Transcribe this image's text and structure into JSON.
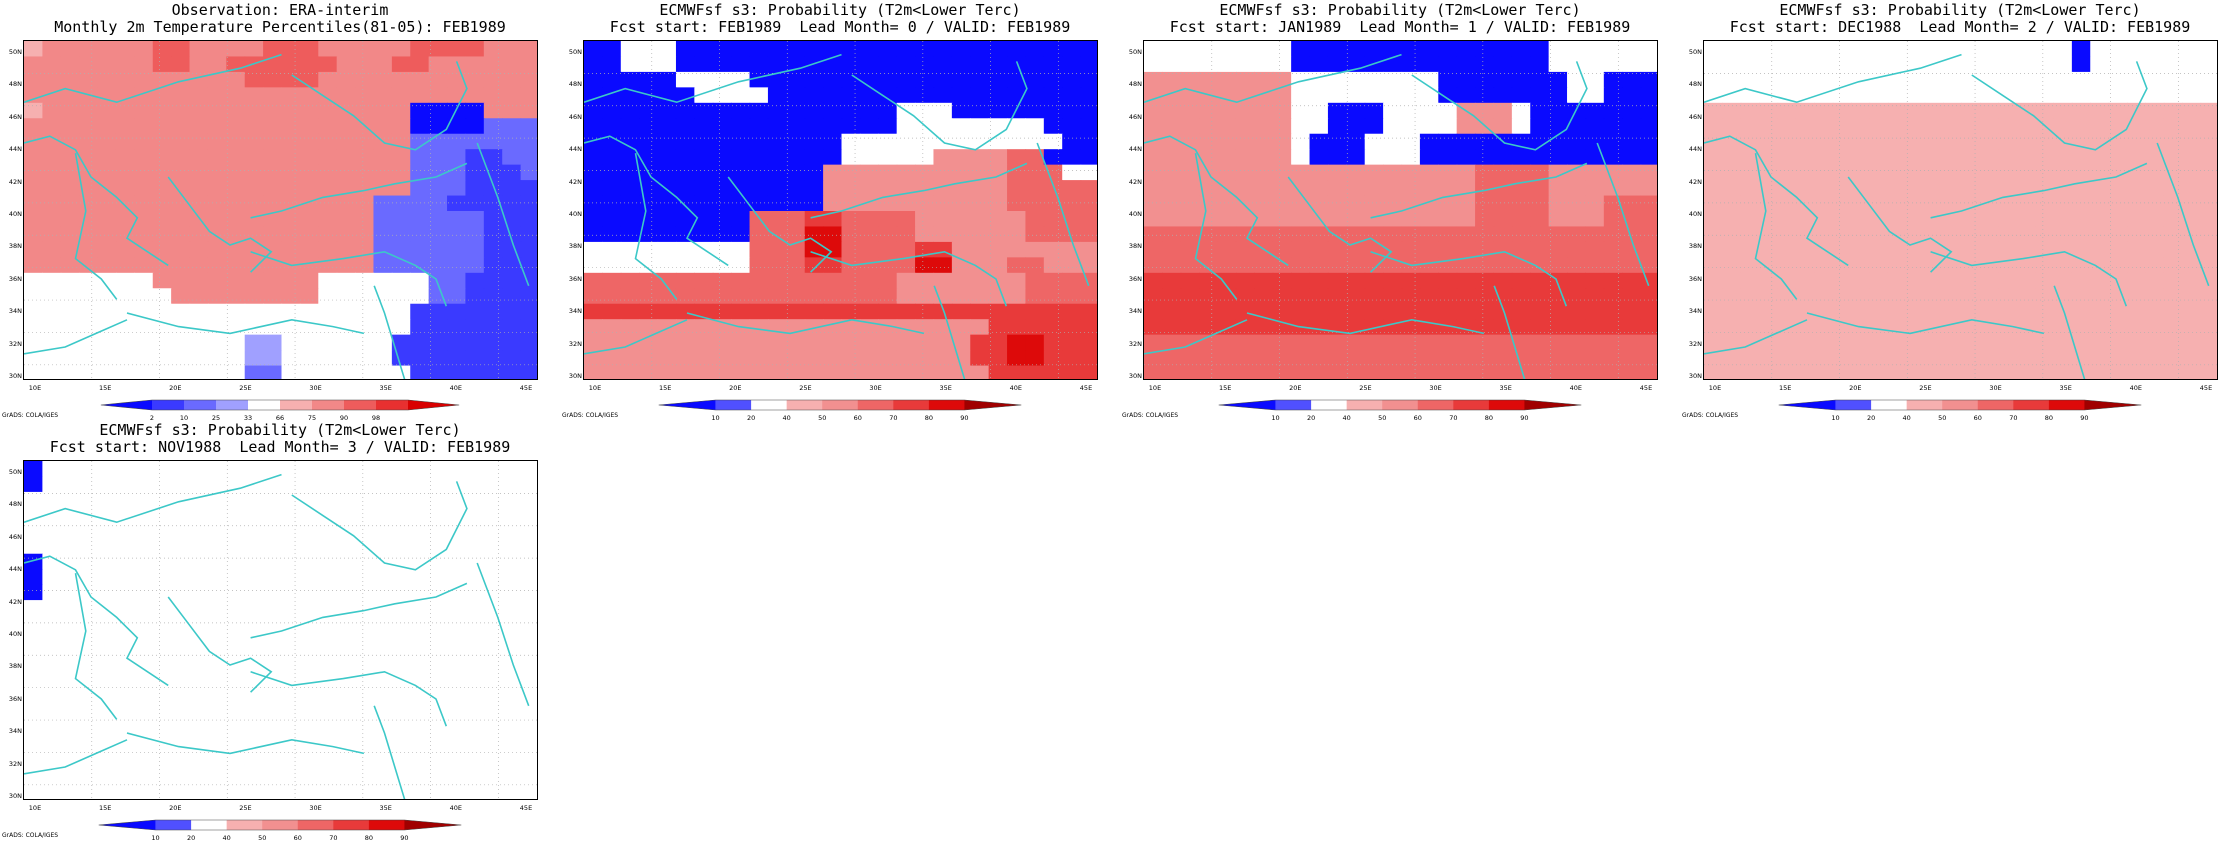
{
  "credit": "GrADS: COLA/IGES",
  "axes": {
    "lat_labels": [
      "50N",
      "48N",
      "46N",
      "44N",
      "42N",
      "40N",
      "38N",
      "36N",
      "34N",
      "32N",
      "30N"
    ],
    "lon_labels": [
      "10E",
      "15E",
      "20E",
      "25E",
      "30E",
      "35E",
      "40E",
      "45E"
    ]
  },
  "colors": {
    "coast": "#3cc8c8",
    "grid": "#b0b0b0",
    "obs_palette": [
      "#0a0aff",
      "#3a3aff",
      "#6a6aff",
      "#a0a0ff",
      "#ffffff",
      "#f6b0b0",
      "#f28888",
      "#ee5c5c",
      "#e83030",
      "#d80000"
    ],
    "prob_palette": [
      "#0a0aff",
      "#5050ff",
      "#ffffff",
      "#f6b0b0",
      "#f29090",
      "#ee6666",
      "#e83a3a",
      "#dd0a0a",
      "#a00000"
    ]
  },
  "panels": [
    {
      "title1": "Observation: ERA-interim",
      "title2": "Monthly 2m Temperature Percentiles(81-05): FEB1989",
      "colorbar": [
        "2",
        "10",
        "25",
        "33",
        "66",
        "75",
        "90",
        "98"
      ],
      "grid": [
        "5666666776666777666667777666",
        "6666666776677777766677666666",
        "6666666666667777666666666666",
        "6666666666666666666666666666",
        "5666666666666666666660000666",
        "6666666666666666666660000222",
        "6666666666666666666662222222",
        "6666666666666666666662221122",
        "6666666666666666666662221112",
        "6666666666666666666662221111",
        "6666666666666666666222211111",
        "6666666666666666666222222111",
        "6666666666666666666222222111",
        "6666666666666666666222222111",
        "6666666666666666666222222111",
        "4444444666666666444444221111",
        "4444444466666666444444221111",
        "4444444444444444444441111111",
        "4444444444444444444441111111",
        "4444444444443344444411111111",
        "4444444444443344444411111111",
        "4444444444442244444441111111"
      ]
    },
    {
      "title1": "ECMWFsf s3: Probability (T2m<Lower Terc)",
      "title2": "Fcst start: FEB1989  Lead Month= 0 / VALID: FEB1989",
      "colorbar": [
        "10",
        "20",
        "40",
        "50",
        "60",
        "70",
        "80",
        "90"
      ],
      "grid": [
        "0022200000000000000000000000",
        "0022200000000000000000000000",
        "0000022220000000000000000000",
        "0000002222000000000000000000",
        "0000000000000000022200000000",
        "0000000000000000022222222000",
        "0000000000000022222222222200",
        "0000000000000022222444455000",
        "0000000000000444444444455522",
        "0000000000000444444444455555",
        "0000000000000444444444455555",
        "0000000005556655554444445555",
        "0000000005557755554444445555",
        "2222222225557755556644444444",
        "2222222225556655557744455444",
        "5555555555555555544444445555",
        "5555555555555555544444445555",
        "6666666666666666666666666666",
        "4444444444444444444444666666",
        "4444444444444444444446677666",
        "4444444444444444444446677666",
        "4444444444444444444444666666"
      ]
    },
    {
      "title1": "ECMWFsf s3: Probability (T2m<Lower Terc)",
      "title2": "Fcst start: JAN1989  Lead Month= 1 / VALID: FEB1989",
      "colorbar": [
        "10",
        "20",
        "40",
        "50",
        "60",
        "70",
        "80",
        "90"
      ],
      "grid": [
        "2222222200000000000000222222",
        "2222222200000000000000222222",
        "4444444422222222000000022000",
        "4444444422222222000000022000",
        "4444444422000222244420000000",
        "4444444422000222244420000000",
        "4444444420002220000000000000",
        "4444444420002220000000000000",
        "4444444444444444445555444444",
        "4444444444444444445555444444",
        "4444444444444444445555444555",
        "4444444444444444445555444555",
        "5555555555555555555555555555",
        "5555555555555555555555555555",
        "5555555555555555555555555555",
        "6666666666666666666666666666",
        "6666666666666666666666666666",
        "6666666666666666666666666666",
        "6666666666666666666666666666",
        "5555555555555555555555555555",
        "5555555555555555555555555555",
        "5555555555555555555555555555"
      ]
    },
    {
      "title1": "ECMWFsf s3: Probability (T2m<Lower Terc)",
      "title2": "Fcst start: DEC1988  Lead Month= 2 / VALID: FEB1989",
      "colorbar": [
        "10",
        "20",
        "40",
        "50",
        "60",
        "70",
        "80",
        "90"
      ],
      "grid": [
        "2222222222222222222202222222",
        "2222222222222222222202222222",
        "2222222222222222222222222222",
        "2222222222222222222222222222",
        "3333333333333333333333333333",
        "3333333333333333333333333333",
        "3333333333333333333333333333",
        "3333333333333333333333333333",
        "3333333333333333333333333333",
        "3333333333333333333333333333",
        "3333333333333333333333333333",
        "3333333333333333333333333333",
        "3333333333333333333333333333",
        "3333333333333333333333333333",
        "3333333333333333333333333333",
        "3333333333333333333333333333",
        "3333333333333333333333333333",
        "3333333333333333333333333333",
        "3333333333333333333333333333",
        "3333333333333333333333333333",
        "3333333333333333333333333333",
        "3333333333333333333333333333"
      ]
    },
    {
      "title1": "ECMWFsf s3: Probability (T2m<Lower Terc)",
      "title2": "Fcst start: NOV1988  Lead Month= 3 / VALID: FEB1989",
      "colorbar": [
        "10",
        "20",
        "40",
        "50",
        "60",
        "70",
        "80",
        "90"
      ],
      "grid": [
        "0222222222222222222222222222",
        "0222222222222222222222222222",
        "2222222222222222222222222222",
        "2222222222222222222222222222",
        "2222222222222222222222222222",
        "2222222222222222222222222222",
        "0222222222222222222222222222",
        "0222222222222222222222222222",
        "0222222222222222222222222222",
        "2222222222222222222222222222",
        "2222222222222222222222222222",
        "2222222222222222222222222222",
        "2222222222222222222222222222",
        "2222222222222222222222222222",
        "2222222222222222222222222222",
        "2222222222222222222222222222",
        "2222222222222222222222222222",
        "2222222222222222222222222222",
        "2222222222222222222222222222",
        "2222222222222222222222222222",
        "2222222222222222222222222222",
        "2222222222222222222222222222"
      ]
    }
  ]
}
